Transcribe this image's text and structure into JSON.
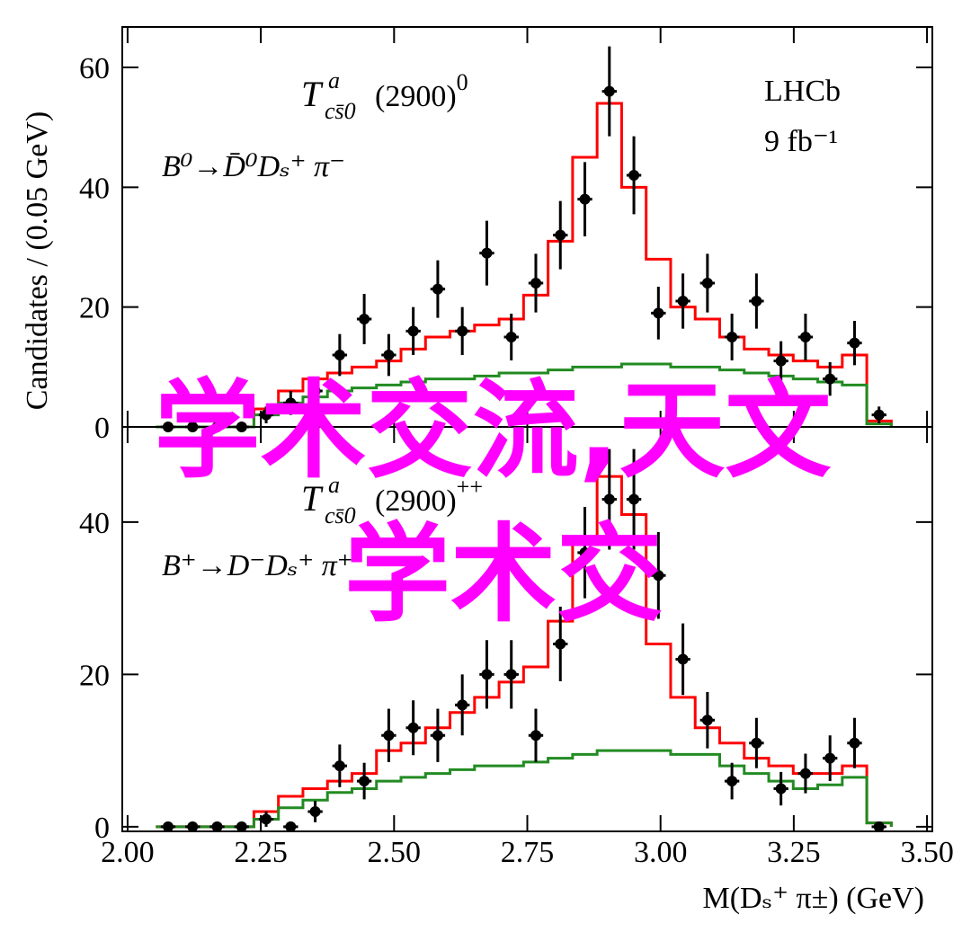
{
  "chart_data": [
    {
      "type": "errorbar",
      "xlim": [
        1.99,
        3.51
      ],
      "ylim": [
        0,
        66.75
      ],
      "yticks": [
        0,
        20,
        40,
        60
      ],
      "ylabel": "Candidates / (0.05 GeV)",
      "label_parts": [
        "T",
        "a",
        "cs̄0",
        "(2900)",
        "0"
      ],
      "decay": "B⁰→D̄⁰Dₛ⁺ π⁻",
      "experiment": "LHCb",
      "luminosity": "9 fb⁻¹",
      "x": [
        2.076,
        2.122,
        2.168,
        2.214,
        2.26,
        2.306,
        2.352,
        2.398,
        2.444,
        2.49,
        2.536,
        2.582,
        2.628,
        2.674,
        2.72,
        2.766,
        2.812,
        2.858,
        2.904,
        2.95,
        2.996,
        3.042,
        3.088,
        3.134,
        3.18,
        3.226,
        3.272,
        3.318,
        3.364,
        3.41
      ],
      "series": [
        {
          "style": "points",
          "color": "#000000",
          "values": [
            0,
            0,
            0,
            0,
            2,
            4,
            6,
            12,
            18,
            12,
            16,
            23,
            16,
            29,
            15,
            24,
            32,
            38,
            56,
            42,
            19,
            21,
            24,
            15,
            21,
            11,
            15,
            8,
            14,
            2
          ],
          "errors": [
            0,
            0,
            0,
            0,
            1.4,
            2,
            2.4,
            3.5,
            4.2,
            3.5,
            4,
            4.8,
            4,
            5.4,
            3.9,
            4.9,
            5.7,
            6.2,
            7.5,
            6.5,
            4.4,
            4.6,
            4.9,
            3.9,
            4.6,
            3.3,
            3.9,
            2.8,
            3.7,
            1.4
          ]
        },
        {
          "style": "step",
          "color": "#ff0000",
          "values": [
            0,
            0,
            0,
            0,
            3,
            6,
            8,
            9,
            10,
            11,
            13,
            15,
            16,
            17,
            18,
            22,
            31,
            45,
            54,
            40,
            28,
            20,
            18,
            15,
            13,
            12,
            11,
            10,
            12,
            1
          ]
        },
        {
          "style": "step",
          "color": "#228b22",
          "values": [
            0,
            0,
            0,
            0,
            2,
            4,
            5,
            6,
            6.5,
            7,
            7.5,
            8,
            8,
            8.5,
            9,
            9,
            9.5,
            10,
            10,
            10.5,
            10.5,
            10,
            10,
            9.5,
            9,
            8.5,
            8,
            7.5,
            7,
            0.5
          ]
        }
      ]
    },
    {
      "type": "errorbar",
      "xlim": [
        1.99,
        3.51
      ],
      "ylim": [
        -0.6,
        52.5
      ],
      "yticks": [
        0,
        20,
        40
      ],
      "xticks": [
        {
          "value": 2,
          "label": "2.00"
        },
        {
          "value": 2.25,
          "label": "2.25"
        },
        {
          "value": 2.5,
          "label": "2.50"
        },
        {
          "value": 2.75,
          "label": "2.75"
        },
        {
          "value": 3,
          "label": "3.00"
        },
        {
          "value": 3.25,
          "label": "3.25"
        },
        {
          "value": 3.5,
          "label": "3.50"
        }
      ],
      "xlabel": "M(Dₛ⁺ π±) (GeV)",
      "label_parts": [
        "T",
        "a",
        "cs̄0",
        "(2900)",
        "++"
      ],
      "decay": "B⁺→D⁻Dₛ⁺ π⁺",
      "x": [
        2.076,
        2.122,
        2.168,
        2.214,
        2.26,
        2.306,
        2.352,
        2.398,
        2.444,
        2.49,
        2.536,
        2.582,
        2.628,
        2.674,
        2.72,
        2.766,
        2.812,
        2.858,
        2.904,
        2.95,
        2.996,
        3.042,
        3.088,
        3.134,
        3.18,
        3.226,
        3.272,
        3.318,
        3.364,
        3.41
      ],
      "series": [
        {
          "style": "points",
          "color": "#000000",
          "values": [
            0,
            0,
            0,
            0,
            1,
            0,
            2,
            8,
            6,
            12,
            13,
            12,
            16,
            20,
            20,
            12,
            24,
            36,
            43,
            43,
            33,
            22,
            14,
            6,
            11,
            5,
            7,
            9,
            11,
            0
          ],
          "errors": [
            0,
            0,
            0,
            0,
            1,
            0,
            1.4,
            2.8,
            2.4,
            3.5,
            3.6,
            3.5,
            4,
            4.5,
            4.5,
            3.5,
            4.9,
            6,
            6.6,
            6.6,
            5.7,
            4.7,
            3.7,
            2.4,
            3.3,
            2.2,
            2.6,
            3,
            3.3,
            0
          ]
        },
        {
          "style": "step",
          "color": "#ff0000",
          "values": [
            0,
            0,
            0,
            0,
            2,
            4,
            5,
            6,
            7,
            10,
            11,
            13,
            15,
            17,
            19,
            21,
            27,
            38,
            46,
            41,
            24,
            17,
            13,
            11,
            9,
            8,
            7,
            7,
            8,
            0.5
          ]
        },
        {
          "style": "step",
          "color": "#228b22",
          "values": [
            0,
            0,
            0,
            0,
            1,
            2.5,
            3.5,
            4.5,
            5,
            6,
            6.5,
            7,
            7.5,
            8,
            8,
            8.5,
            9,
            9.5,
            10,
            10,
            10,
            9.5,
            9.5,
            8,
            7,
            6,
            5,
            5.5,
            6.5,
            0.5
          ]
        }
      ]
    }
  ],
  "watermark": [
    "学术交流,天文",
    "学术交"
  ]
}
